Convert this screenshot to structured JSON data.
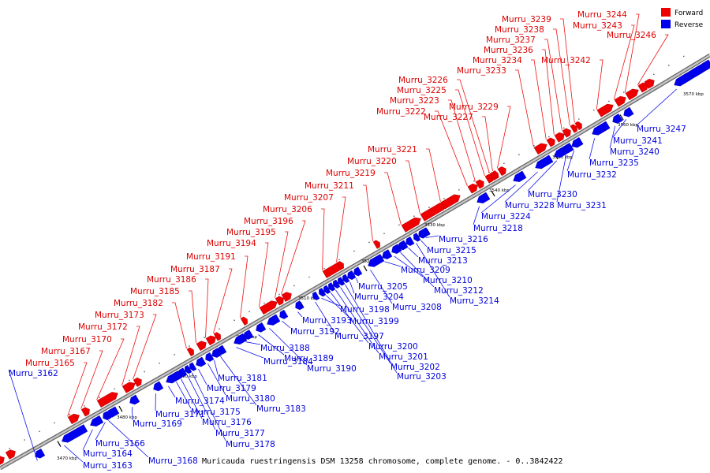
{
  "caption": "Muricauda ruestringensis DSM 13258 chromosome, complete genome. - 0..3842422",
  "legend": [
    {
      "label": "Forward",
      "color": "#ee0000"
    },
    {
      "label": "Reverse",
      "color": "#0000ee"
    }
  ],
  "colors": {
    "forward": "#ee0000",
    "reverse": "#0000ee",
    "backbone": "#999999"
  },
  "ticks": [
    {
      "kbp": 3470,
      "label": "3470 kbp"
    },
    {
      "kbp": 3480,
      "label": "3480 kbp"
    },
    {
      "kbp": 3490,
      "label": "3490 kbp"
    },
    {
      "kbp": 3500,
      "label": "3500 kbp"
    },
    {
      "kbp": 3510,
      "label": "3510 kbp"
    },
    {
      "kbp": 3520,
      "label": "3520 kbp"
    },
    {
      "kbp": 3530,
      "label": "3530 kbp"
    },
    {
      "kbp": 3540,
      "label": "3540 kbp"
    },
    {
      "kbp": 3550,
      "label": "3550 kbp"
    },
    {
      "kbp": 3560,
      "label": "3560 kbp"
    },
    {
      "kbp": 3570,
      "label": "3570 kbp"
    }
  ],
  "forward_genes": [
    "Murru_3165",
    "Murru_3167",
    "Murru_3170",
    "Murru_3172",
    "Murru_3173",
    "Murru_3182",
    "Murru_3185",
    "Murru_3186",
    "Murru_3187",
    "Murru_3191",
    "Murru_3194",
    "Murru_3195",
    "Murru_3196",
    "Murru_3206",
    "Murru_3207",
    "Murru_3211",
    "Murru_3219",
    "Murru_3220",
    "Murru_3221",
    "Murru_3222",
    "Murru_3223",
    "Murru_3225",
    "Murru_3226",
    "Murru_3227",
    "Murru_3229",
    "Murru_3233",
    "Murru_3234",
    "Murru_3236",
    "Murru_3237",
    "Murru_3238",
    "Murru_3239",
    "Murru_3242",
    "Murru_3243",
    "Murru_3244",
    "Murru_3246"
  ],
  "reverse_genes": [
    "Murru_3162",
    "Murru_3163",
    "Murru_3164",
    "Murru_3166",
    "Murru_3168",
    "Murru_3169",
    "Murru_3171",
    "Murru_3174",
    "Murru_3175",
    "Murru_3176",
    "Murru_3177",
    "Murru_3178",
    "Murru_3179",
    "Murru_3180",
    "Murru_3181",
    "Murru_3183",
    "Murru_3184",
    "Murru_3188",
    "Murru_3189",
    "Murru_3190",
    "Murru_3192",
    "Murru_3193",
    "Murru_3197",
    "Murru_3198",
    "Murru_3199",
    "Murru_3200",
    "Murru_3201",
    "Murru_3202",
    "Murru_3203",
    "Murru_3204",
    "Murru_3205",
    "Murru_3208",
    "Murru_3209",
    "Murru_3210",
    "Murru_3212",
    "Murru_3213",
    "Murru_3214",
    "Murru_3215",
    "Murru_3216",
    "Murru_3218",
    "Murru_3224",
    "Murru_3228",
    "Murru_3230",
    "Murru_3231",
    "Murru_3232",
    "Murru_3235",
    "Murru_3240",
    "Murru_3241",
    "Murru_3247"
  ]
}
